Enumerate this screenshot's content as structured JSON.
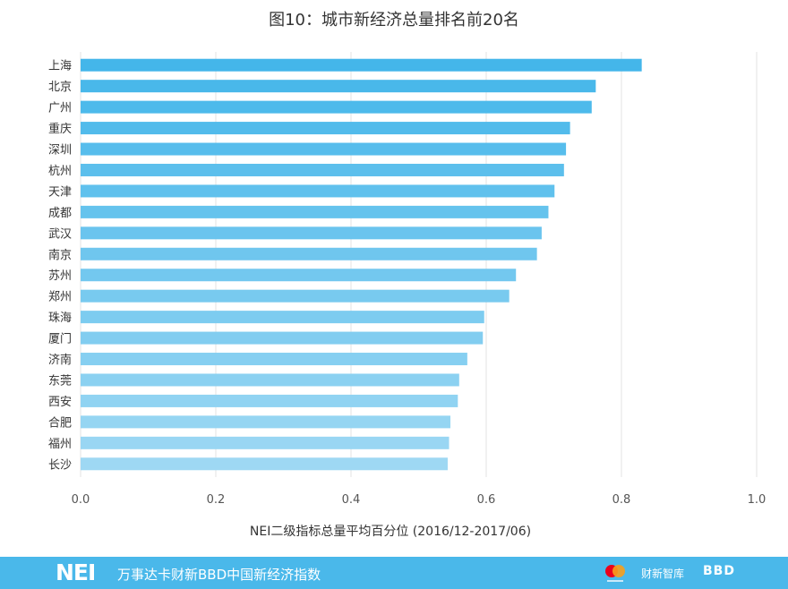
{
  "chart_data": {
    "type": "bar",
    "orientation": "horizontal",
    "title": "图10：城市新经济总量排名前20名",
    "xlabel": "NEI二级指标总量平均百分位 (2016/12-2017/06)",
    "ylabel": "",
    "xlim": [
      0,
      1.0
    ],
    "xticks": [
      0.0,
      0.2,
      0.4,
      0.6,
      0.8,
      1.0
    ],
    "xtick_labels": [
      "0.0",
      "0.2",
      "0.4",
      "0.6",
      "0.8",
      "1.0"
    ],
    "grid": "vertical",
    "categories": [
      "上海",
      "北京",
      "广州",
      "重庆",
      "深圳",
      "杭州",
      "天津",
      "成都",
      "武汉",
      "南京",
      "苏州",
      "郑州",
      "珠海",
      "厦门",
      "济南",
      "东莞",
      "西安",
      "合肥",
      "福州",
      "长沙"
    ],
    "values": [
      0.83,
      0.762,
      0.756,
      0.724,
      0.718,
      0.715,
      0.701,
      0.692,
      0.682,
      0.675,
      0.644,
      0.634,
      0.597,
      0.595,
      0.572,
      0.56,
      0.558,
      0.547,
      0.545,
      0.543
    ],
    "colors": {
      "bar_top": "#44b6ea",
      "bar_bottom": "#a8dcf4",
      "grid": "#e3e3e3",
      "text": "#333333",
      "tick_text": "#555555"
    }
  },
  "footer": {
    "brand": "NEI",
    "tagline": "万事达卡财新BBD中国新经济指数",
    "caixin_logo": "财新智库",
    "bbd_logo": "BBD",
    "mastercard_logo": "mastercard-logo",
    "bg_color": "#4ab8ea"
  }
}
